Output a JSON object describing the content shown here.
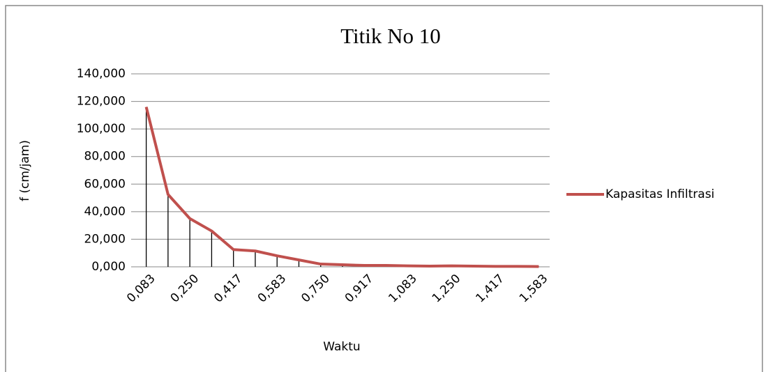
{
  "chart_data": {
    "type": "line",
    "title": "Titik No 10",
    "x_label": "Waktu",
    "y_label": "f (cm/jam)",
    "categories": [
      "0,083",
      null,
      "0,250",
      null,
      "0,417",
      null,
      "0,583",
      null,
      "0,750",
      null,
      "0,917",
      null,
      "1,083",
      null,
      "1,250",
      null,
      "1,417",
      null,
      "1,583"
    ],
    "series": [
      {
        "name": "Kapasitas Infiltrasi",
        "color": "#c0504d",
        "values": [
          116,
          52.5,
          35,
          26,
          12.5,
          11.5,
          8,
          5,
          2,
          1.5,
          1,
          1,
          0.7,
          0.5,
          0.7,
          0.5,
          0.3,
          0.3,
          0.2
        ]
      }
    ],
    "ylim": [
      0,
      140
    ],
    "yticks": [
      {
        "value": 0,
        "label": "0,000"
      },
      {
        "value": 20,
        "label": "20,000"
      },
      {
        "value": 40,
        "label": "40,000"
      },
      {
        "value": 60,
        "label": "60,000"
      },
      {
        "value": 80,
        "label": "80,000"
      },
      {
        "value": 100,
        "label": "100,000"
      },
      {
        "value": 120,
        "label": "120,000"
      },
      {
        "value": 140,
        "label": "140,000"
      }
    ],
    "grid": true,
    "drop_lines": true,
    "legend": "right"
  }
}
